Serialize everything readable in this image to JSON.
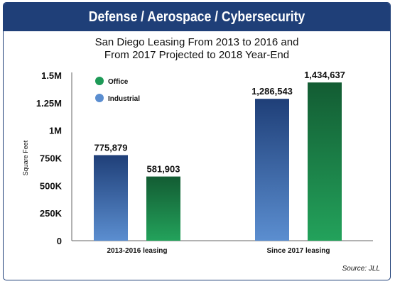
{
  "header": {
    "title": "Defense / Aerospace / Cybersecurity"
  },
  "subtitle": {
    "line1": "San Diego Leasing From 2013 to 2016 and",
    "line2": "From 2017 Projected to 2018 Year-End"
  },
  "source": "Source: JLL",
  "chart_data": {
    "type": "bar",
    "title": "",
    "xlabel": "",
    "ylabel": "Square Feet",
    "categories": [
      "2013-2016 leasing",
      "Since 2017 leasing"
    ],
    "series": [
      {
        "name": "Industrial",
        "values": [
          775879,
          1286543
        ],
        "labels": [
          "775,879",
          "1,286,543"
        ],
        "color_top": "#1f3f78",
        "color_bottom": "#5b8ed0"
      },
      {
        "name": "Office",
        "values": [
          581903,
          1434637
        ],
        "labels": [
          "581,903",
          "1,434,637"
        ],
        "color_top": "#135c33",
        "color_bottom": "#23a25b"
      }
    ],
    "legend": [
      "Office",
      "Industrial"
    ],
    "legend_position": "top-left",
    "ylim": [
      0,
      1500000
    ],
    "yticks": [
      0,
      250000,
      500000,
      750000,
      1000000,
      1250000,
      1500000
    ],
    "ytick_labels": [
      "0",
      "250K",
      "500K",
      "750K",
      "1M",
      "1.25M",
      "1.5M"
    ],
    "grid": false
  },
  "colors": {
    "banner": "#1f3f78",
    "office_legend": "#1e9a57",
    "industrial_legend": "#5b8ed0"
  }
}
